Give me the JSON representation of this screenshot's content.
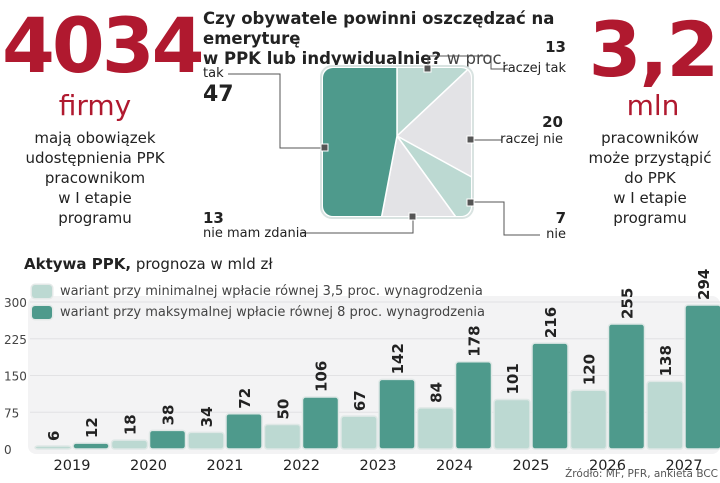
{
  "left_stat": {
    "value": "4034",
    "unit": "firmy",
    "description_lines": [
      "mają obowiązek",
      "udostępnienia PPK",
      "pracownikom",
      "w I etapie",
      "programu"
    ]
  },
  "right_stat": {
    "value": "3,2",
    "unit": "mln",
    "description_lines": [
      "pracowników",
      "może przystąpić",
      "do PPK",
      "w I etapie",
      "programu"
    ]
  },
  "colors": {
    "accent_red": "#b0192f",
    "dark_teal": "#4e9a8c",
    "light_teal": "#bcd9d2",
    "light_gray": "#e3e3e6"
  },
  "chart_data": [
    {
      "type": "pie",
      "title": "Czy obywatele powinni oszczędzać na emeryturę w PPK lub indywidualnie?",
      "title_line1": "Czy obywatele powinni oszczędzać na emeryturę",
      "title_line2_bold": "w PPK lub indywidualnie?",
      "title_suffix": "w proc.",
      "unit": "%",
      "slices": [
        {
          "label": "tak",
          "value": 47,
          "display": "47",
          "color": "#4e9a8c"
        },
        {
          "label": "raczej tak",
          "value": 13,
          "display": "13",
          "color": "#bcd9d2"
        },
        {
          "label": "raczej nie",
          "value": 20,
          "display": "20",
          "color": "#e3e3e6"
        },
        {
          "label": "nie",
          "value": 7,
          "display": "7",
          "color": "#bcd9d2"
        },
        {
          "label": "nie mam zdania",
          "value": 13,
          "display": "13",
          "color": "#e3e3e6"
        }
      ]
    },
    {
      "type": "bar",
      "title": "Aktywa PPK,",
      "subtitle": "prognoza w mld zł",
      "categories": [
        "2019",
        "2020",
        "2021",
        "2022",
        "2023",
        "2024",
        "2025",
        "2026",
        "2027"
      ],
      "series": [
        {
          "name": "wariant przy minimalnej wpłacie równej 3,5 proc. wynagrodzenia",
          "color": "#bcd9d2",
          "values": [
            6,
            18,
            34,
            50,
            67,
            84,
            101,
            120,
            138
          ]
        },
        {
          "name": "wariant przy maksymalnej wpłacie równej 8 proc. wynagrodzenia",
          "color": "#4e9a8c",
          "values": [
            12,
            38,
            72,
            106,
            142,
            178,
            216,
            255,
            294
          ]
        }
      ],
      "yticks": [
        0,
        75,
        150,
        225,
        300
      ],
      "ylim": [
        0,
        300
      ],
      "xlabel": "",
      "ylabel": "",
      "grid": true,
      "legend_position": "top-left"
    }
  ],
  "source": "Źródło: MF, PFR, ankieta BCC"
}
